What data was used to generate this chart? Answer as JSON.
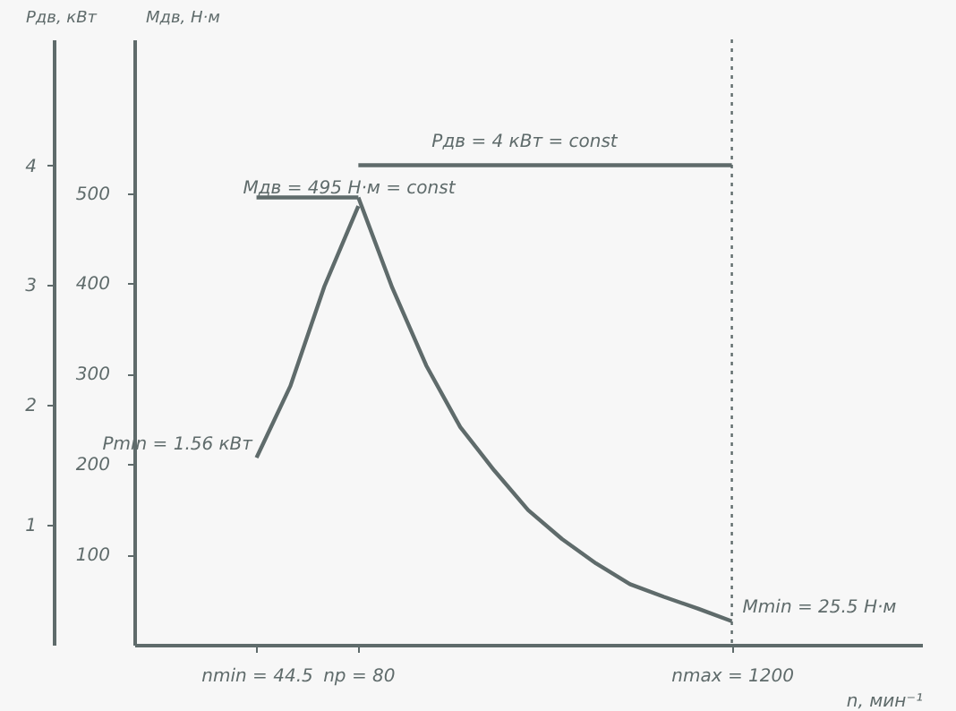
{
  "chart_data": {
    "type": "line",
    "xlabel": "n, мин⁻¹",
    "ylabel": "Мдв, Н·м",
    "y2label": "Рдв, кВт",
    "categories": [
      null,
      null,
      null,
      "nmin = 44.5",
      null,
      null,
      "np = 80",
      null,
      null,
      null,
      null,
      null,
      null,
      null,
      null,
      null,
      null,
      "nmax = 1200",
      null,
      null,
      null,
      null,
      null
    ],
    "ylim": [
      0,
      670
    ],
    "yticks": [
      100,
      200,
      300,
      400,
      500
    ],
    "y2lim": [
      0,
      5.05
    ],
    "y2ticks": [
      1,
      2,
      3,
      4
    ],
    "series": [
      {
        "axis": "y",
        "color": "#5f6b6b",
        "values": [
          null,
          null,
          null,
          495,
          495,
          495,
          495,
          null,
          null,
          null,
          null,
          null,
          null,
          null,
          null,
          null,
          null,
          null,
          null,
          null,
          null,
          null,
          null
        ]
      },
      {
        "axis": "y",
        "color": "#5f6b6b",
        "values": [
          null,
          null,
          null,
          null,
          null,
          null,
          495,
          395,
          309,
          241,
          193,
          149,
          117,
          90,
          67,
          53,
          40,
          26,
          null,
          null,
          null,
          null,
          null
        ]
      },
      {
        "axis": "y2",
        "color": "#5f6b6b",
        "values": [
          null,
          null,
          null,
          1.56,
          2.16,
          2.99,
          3.66,
          null,
          null,
          null,
          null,
          null,
          null,
          null,
          null,
          null,
          null,
          null,
          null,
          null,
          null,
          null,
          null
        ]
      },
      {
        "axis": "y2",
        "color": "#5f6b6b",
        "values": [
          null,
          null,
          null,
          null,
          null,
          null,
          4,
          4,
          4,
          4,
          4,
          4,
          4,
          4,
          4,
          4,
          4,
          4,
          null,
          null,
          null,
          null,
          null
        ]
      }
    ],
    "ref_lines": [
      {
        "axis": "x",
        "value": "nmax = 1200",
        "line_style": "dotted",
        "color": "#5f6b6b"
      }
    ],
    "annotations": [
      "Рдв = 4 кВт = const",
      "Мдв = 495 Н·м = const",
      "Рmin = 1.56 кВт",
      {
        "text": "Мmin = 25.5 Н·м",
        "x": "nmax = 1200",
        "y": 26
      }
    ],
    "line_style": "solid"
  }
}
